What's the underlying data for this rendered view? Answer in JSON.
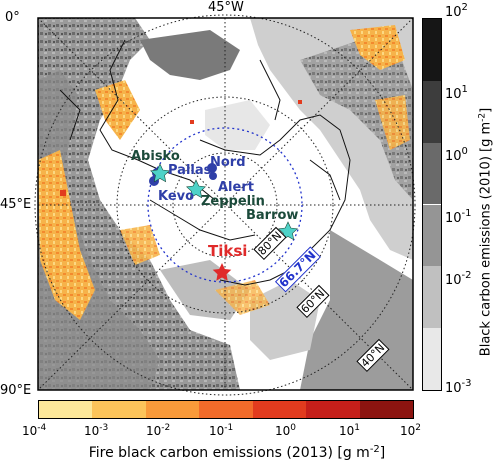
{
  "map": {
    "lon_labels": {
      "top": "45°W",
      "top_left": "0°",
      "left_mid": "45°E",
      "bottom_left": "90°E"
    },
    "lat_circles": [
      {
        "label": "80°N"
      },
      {
        "label": "60°N"
      },
      {
        "label": "40°N"
      }
    ],
    "arctic_circle_label": "66.7°N",
    "stations": [
      {
        "name": "Nord",
        "color": "#2f3fa8",
        "marker": "circle"
      },
      {
        "name": "Alert",
        "color": "#2f3fa8",
        "marker": "circle"
      },
      {
        "name": "Pallas",
        "color": "#2f3fa8",
        "marker": "circle"
      },
      {
        "name": "Kevo",
        "color": "#2f3fa8",
        "marker": "circle"
      },
      {
        "name": "Abisko",
        "color": "#1b4a3a",
        "marker": "star"
      },
      {
        "name": "Zeppelin",
        "color": "#1b4a3a",
        "marker": "star"
      },
      {
        "name": "Barrow",
        "color": "#1b4a3a",
        "marker": "star"
      },
      {
        "name": "Tiksi",
        "color": "#e02a2a",
        "marker": "star"
      }
    ]
  },
  "right_colorbar": {
    "label_main": "Black carbon emissions (2010) [g m",
    "label_exp": "-2",
    "label_end": "]",
    "ticks": [
      {
        "base": "10",
        "exp": "2"
      },
      {
        "base": "10",
        "exp": "1"
      },
      {
        "base": "10",
        "exp": "0"
      },
      {
        "base": "10",
        "exp": "-1"
      },
      {
        "base": "10",
        "exp": "-2"
      },
      {
        "base": "10",
        "exp": "-3"
      }
    ],
    "colors": [
      "#161616",
      "#3d3d3d",
      "#6a6a6a",
      "#959595",
      "#c0c0c0",
      "#e8e8e8"
    ]
  },
  "bottom_colorbar": {
    "label_main": "Fire black carbon emissions (2013) [g m",
    "label_exp": "-2",
    "label_end": "]",
    "ticks": [
      {
        "base": "10",
        "exp": "-4"
      },
      {
        "base": "10",
        "exp": "-3"
      },
      {
        "base": "10",
        "exp": "-2"
      },
      {
        "base": "10",
        "exp": "-1"
      },
      {
        "base": "10",
        "exp": "0"
      },
      {
        "base": "10",
        "exp": "1"
      },
      {
        "base": "10",
        "exp": "2"
      }
    ],
    "colors": [
      "#fde89a",
      "#fcc45a",
      "#f99a3a",
      "#f26b2a",
      "#e23b1e",
      "#c51f1a",
      "#8c1410"
    ]
  }
}
